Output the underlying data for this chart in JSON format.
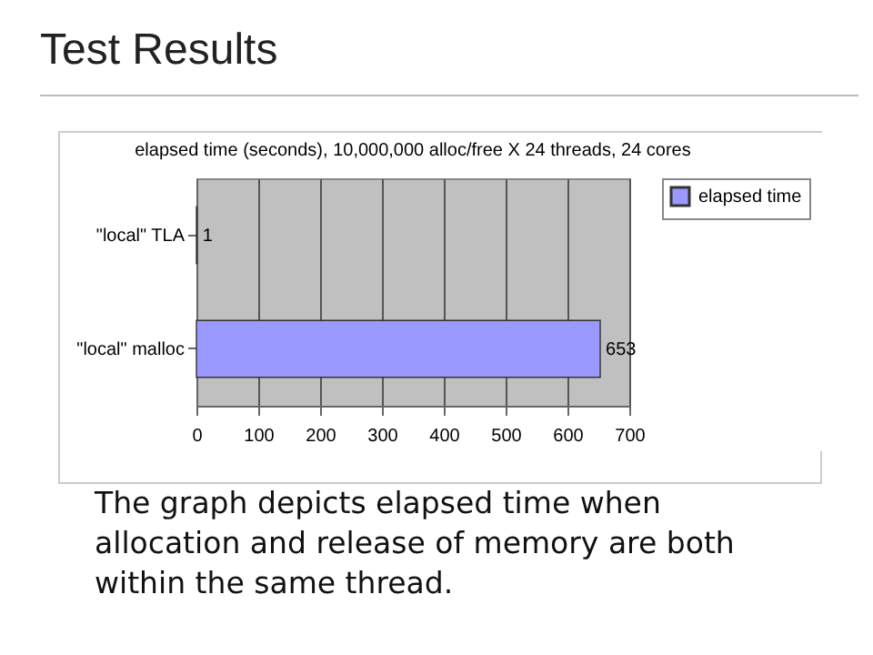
{
  "chart_data": {
    "type": "bar",
    "orientation": "horizontal",
    "title": "Test Results",
    "subtitle": "elapsed time (seconds), 10,000,000 alloc/free X 24 threads, 24 cores",
    "categories": [
      "\"local\" TLA",
      "\"local\" malloc"
    ],
    "series": [
      {
        "name": "elapsed time",
        "color": "#9999ff",
        "values": [
          1,
          653
        ]
      }
    ],
    "xlim": [
      0,
      700
    ],
    "xticks": [
      0,
      100,
      200,
      300,
      400,
      500,
      600,
      700
    ],
    "grid": "x",
    "legend": "right",
    "data_labels": true,
    "annotations": [
      "The graph depicts elapsed time when allocation and release of memory are both within the same thread."
    ]
  }
}
